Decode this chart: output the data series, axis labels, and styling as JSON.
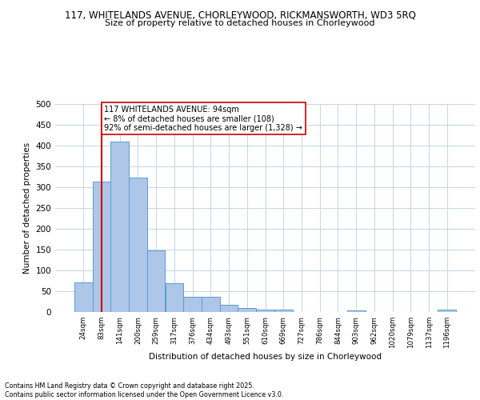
{
  "title_line1": "117, WHITELANDS AVENUE, CHORLEYWOOD, RICKMANSWORTH, WD3 5RQ",
  "title_line2": "Size of property relative to detached houses in Chorleywood",
  "xlabel": "Distribution of detached houses by size in Chorleywood",
  "ylabel": "Number of detached properties",
  "categories": [
    "24sqm",
    "83sqm",
    "141sqm",
    "200sqm",
    "259sqm",
    "317sqm",
    "376sqm",
    "434sqm",
    "493sqm",
    "551sqm",
    "610sqm",
    "669sqm",
    "727sqm",
    "786sqm",
    "844sqm",
    "903sqm",
    "962sqm",
    "1020sqm",
    "1079sqm",
    "1137sqm",
    "1196sqm"
  ],
  "values": [
    72,
    314,
    410,
    324,
    148,
    69,
    37,
    36,
    18,
    10,
    5,
    6,
    0,
    0,
    0,
    3,
    0,
    0,
    0,
    0,
    5
  ],
  "bar_color": "#aec6e8",
  "bar_edge_color": "#5b9bd5",
  "vline_x": 1,
  "vline_color": "#cc0000",
  "annotation_text": "117 WHITELANDS AVENUE: 94sqm\n← 8% of detached houses are smaller (108)\n92% of semi-detached houses are larger (1,328) →",
  "annotation_box_color": "#ffffff",
  "annotation_box_edge": "#cc0000",
  "grid_color": "#c8d8e8",
  "background_color": "#ffffff",
  "footer_text": "Contains HM Land Registry data © Crown copyright and database right 2025.\nContains public sector information licensed under the Open Government Licence v3.0.",
  "ylim": [
    0,
    500
  ],
  "yticks": [
    0,
    50,
    100,
    150,
    200,
    250,
    300,
    350,
    400,
    450,
    500
  ]
}
